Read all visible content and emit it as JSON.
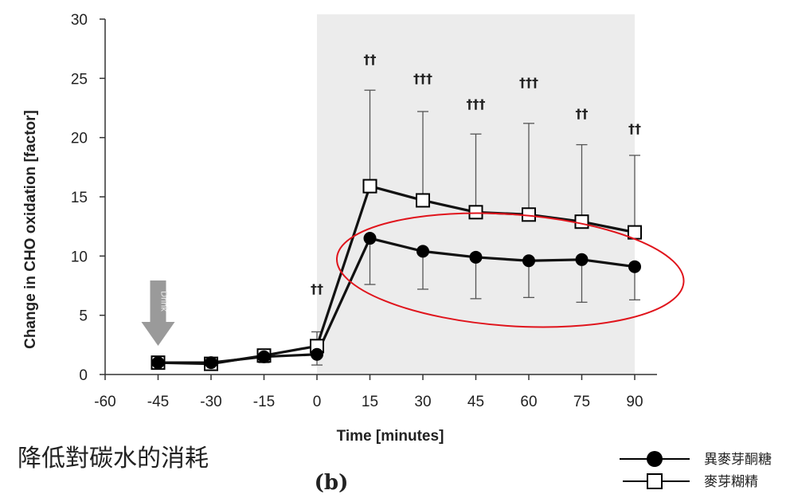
{
  "chart_data": {
    "type": "line",
    "x": [
      -45,
      -30,
      -15,
      0,
      15,
      30,
      45,
      60,
      75,
      90
    ],
    "xlim": [
      -60,
      90
    ],
    "ylim": [
      0,
      30
    ],
    "xticks": [
      "-60",
      "-45",
      "-30",
      "-15",
      "0",
      "15",
      "30",
      "45",
      "60",
      "75",
      "90"
    ],
    "yticks": [
      "0",
      "5",
      "10",
      "15",
      "20",
      "25",
      "30"
    ],
    "xlabel": "Time [minutes]",
    "ylabel": "Change in CHO oxidation [factor]",
    "shaded_region": [
      0,
      90
    ],
    "shaded_color": "#ececec",
    "drink_marker": {
      "x": -45,
      "label": "Drink",
      "color": "#9a9a9a"
    },
    "series": [
      {
        "name": "異麥芽酮糖",
        "marker": "filled-circle",
        "values": [
          1.0,
          1.0,
          1.5,
          1.7,
          11.5,
          10.4,
          9.9,
          9.6,
          9.7,
          9.1
        ],
        "error_lower": [
          null,
          null,
          1.0,
          0.8,
          7.6,
          7.2,
          6.4,
          6.5,
          6.1,
          6.3
        ]
      },
      {
        "name": "麥芽糊精",
        "marker": "open-square",
        "values": [
          1.0,
          0.9,
          1.6,
          2.4,
          15.9,
          14.7,
          13.7,
          13.5,
          12.9,
          12.0
        ],
        "error_upper": [
          null,
          null,
          null,
          3.6,
          24.0,
          22.2,
          20.3,
          21.2,
          19.4,
          18.5
        ]
      }
    ],
    "annotations": [
      {
        "x": 0,
        "text": "††"
      },
      {
        "x": 15,
        "text": "††"
      },
      {
        "x": 30,
        "text": "†††"
      },
      {
        "x": 45,
        "text": "†††"
      },
      {
        "x": 60,
        "text": "†††"
      },
      {
        "x": 75,
        "text": "††"
      },
      {
        "x": 90,
        "text": "††"
      }
    ],
    "highlight": {
      "shape": "ellipse",
      "color": "#e0141c",
      "x_range": [
        15,
        90
      ],
      "series": "異麥芽酮糖"
    },
    "caption": "降低對碳水的消耗",
    "panel_label": "(b)"
  }
}
